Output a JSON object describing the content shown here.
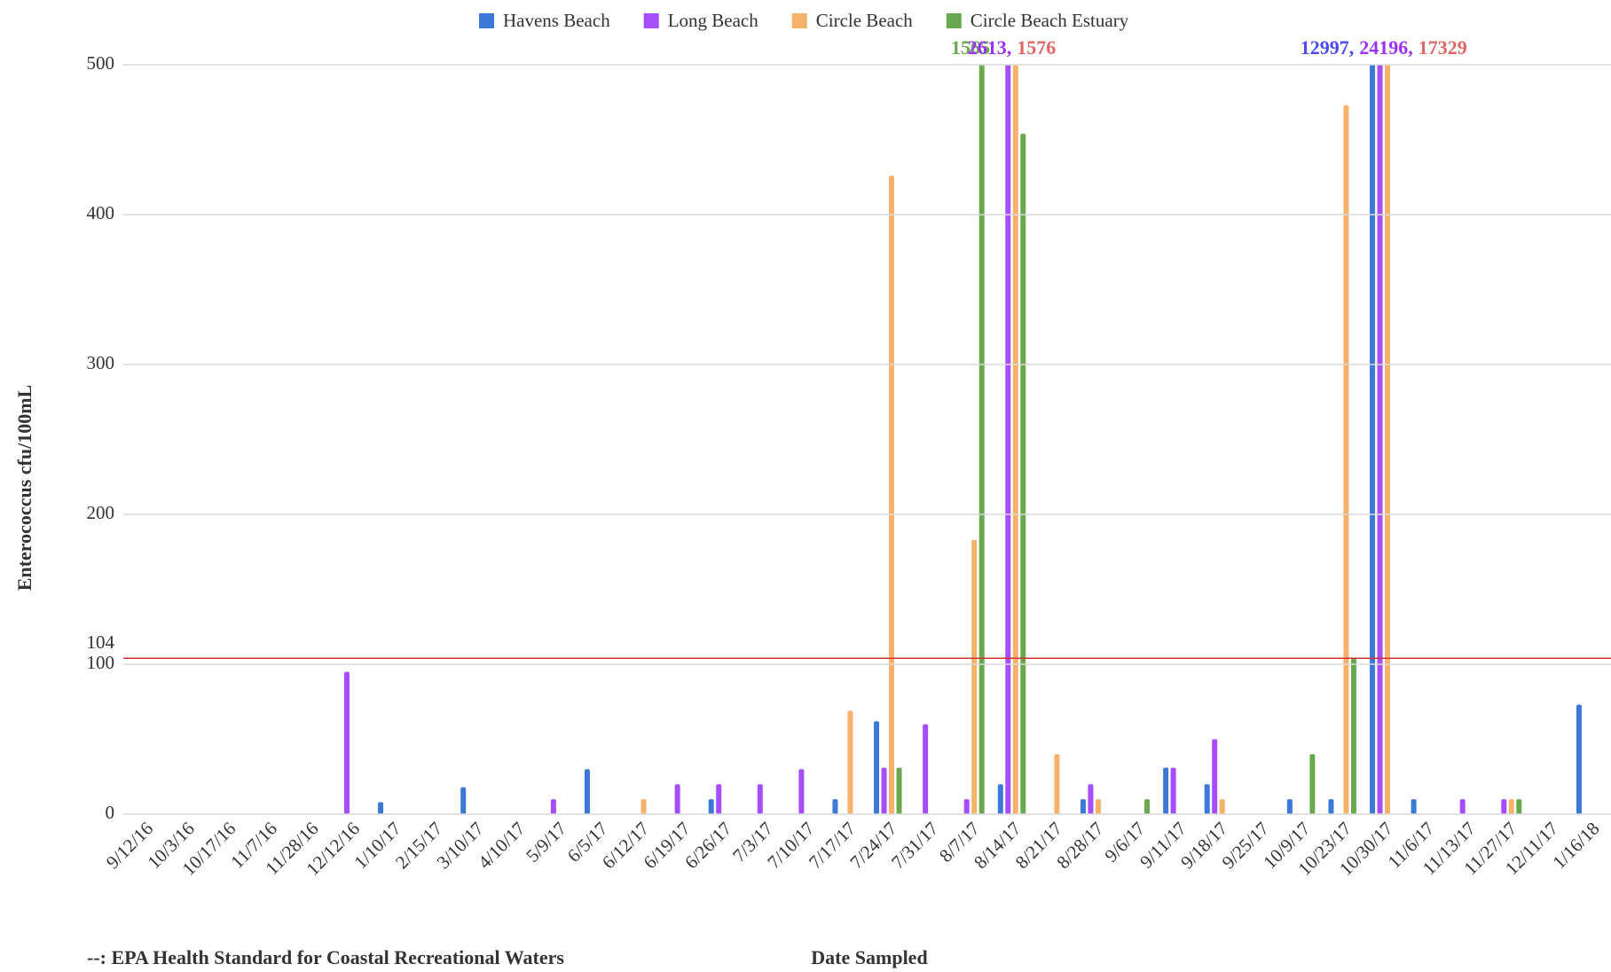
{
  "chart_data": {
    "type": "bar",
    "y_label": "Enterococcus cfu/100mL",
    "x_label": "Date Sampled",
    "categories": [
      "9/12/16",
      "10/3/16",
      "10/17/16",
      "11/7/16",
      "11/28/16",
      "12/12/16",
      "1/10/17",
      "2/15/17",
      "3/10/17",
      "4/10/17",
      "5/9/17",
      "6/5/17",
      "6/12/17",
      "6/19/17",
      "6/26/17",
      "7/3/17",
      "7/10/17",
      "7/17/17",
      "7/24/17",
      "7/31/17",
      "8/7/17",
      "8/14/17",
      "8/21/17",
      "8/28/17",
      "9/6/17",
      "9/11/17",
      "9/18/17",
      "9/25/17",
      "10/9/17",
      "10/23/17",
      "10/30/17",
      "11/6/17",
      "11/13/17",
      "11/27/17",
      "12/11/17",
      "1/16/18"
    ],
    "series": [
      {
        "name": "Havens Beach",
        "color": "#3c78d8",
        "label_color": "#4a4af0",
        "values": [
          null,
          null,
          null,
          null,
          null,
          null,
          8,
          null,
          18,
          null,
          null,
          30,
          null,
          null,
          10,
          null,
          null,
          10,
          62,
          null,
          null,
          20,
          null,
          10,
          null,
          31,
          20,
          null,
          10,
          10,
          12997,
          10,
          null,
          null,
          null,
          73
        ],
        "value_labels": [
          null,
          null,
          null,
          null,
          null,
          null,
          null,
          null,
          null,
          null,
          null,
          null,
          null,
          null,
          null,
          null,
          null,
          null,
          null,
          null,
          null,
          null,
          null,
          null,
          null,
          null,
          null,
          null,
          null,
          null,
          "12997,",
          null,
          null,
          null,
          null,
          null
        ]
      },
      {
        "name": "Long Beach",
        "color": "#a64dff",
        "label_color": "#9b30ff",
        "values": [
          null,
          null,
          null,
          null,
          null,
          95,
          null,
          null,
          null,
          null,
          10,
          null,
          null,
          20,
          20,
          20,
          30,
          null,
          31,
          60,
          10,
          2613,
          null,
          20,
          null,
          31,
          50,
          null,
          null,
          null,
          24196,
          null,
          10,
          10,
          null,
          null
        ],
        "value_labels": [
          null,
          null,
          null,
          null,
          null,
          null,
          null,
          null,
          null,
          null,
          null,
          null,
          null,
          null,
          null,
          null,
          null,
          null,
          null,
          null,
          null,
          "2613,",
          null,
          null,
          null,
          null,
          null,
          null,
          null,
          null,
          "24196,",
          null,
          null,
          null,
          null,
          null
        ]
      },
      {
        "name": "Circle Beach",
        "color": "#f6b26b",
        "label_color": "#e06666",
        "values": [
          null,
          null,
          null,
          null,
          null,
          null,
          null,
          null,
          null,
          null,
          null,
          null,
          10,
          null,
          null,
          null,
          null,
          69,
          426,
          null,
          183,
          1576,
          40,
          10,
          null,
          null,
          10,
          null,
          null,
          473,
          17329,
          null,
          null,
          10,
          null,
          null
        ],
        "value_labels": [
          null,
          null,
          null,
          null,
          null,
          null,
          null,
          null,
          null,
          null,
          null,
          null,
          null,
          null,
          null,
          null,
          null,
          null,
          null,
          null,
          null,
          "1576",
          null,
          null,
          null,
          null,
          null,
          null,
          null,
          null,
          "17329",
          null,
          null,
          null,
          null,
          null
        ]
      },
      {
        "name": "Circle Beach Estuary",
        "color": "#6aa84f",
        "label_color": "#6aa84f",
        "values": [
          null,
          null,
          null,
          null,
          null,
          null,
          null,
          null,
          null,
          null,
          null,
          null,
          null,
          null,
          null,
          null,
          null,
          null,
          31,
          null,
          1565,
          454,
          null,
          null,
          10,
          null,
          null,
          null,
          40,
          104,
          null,
          null,
          null,
          10,
          null,
          null
        ],
        "value_labels": [
          null,
          null,
          null,
          null,
          null,
          null,
          null,
          null,
          null,
          null,
          null,
          null,
          null,
          null,
          null,
          null,
          null,
          null,
          null,
          null,
          "1565",
          null,
          null,
          null,
          null,
          null,
          null,
          null,
          null,
          null,
          null,
          null,
          null,
          null,
          null,
          null
        ]
      }
    ],
    "ylim": [
      0,
      500
    ],
    "yticks": [
      0,
      100,
      200,
      300,
      400,
      500
    ],
    "grid": true,
    "legend": "top",
    "reference_line": {
      "value": 104,
      "color": "#d32f2f",
      "note": "--: EPA Health Standard for Coastal Recreational Waters"
    }
  }
}
